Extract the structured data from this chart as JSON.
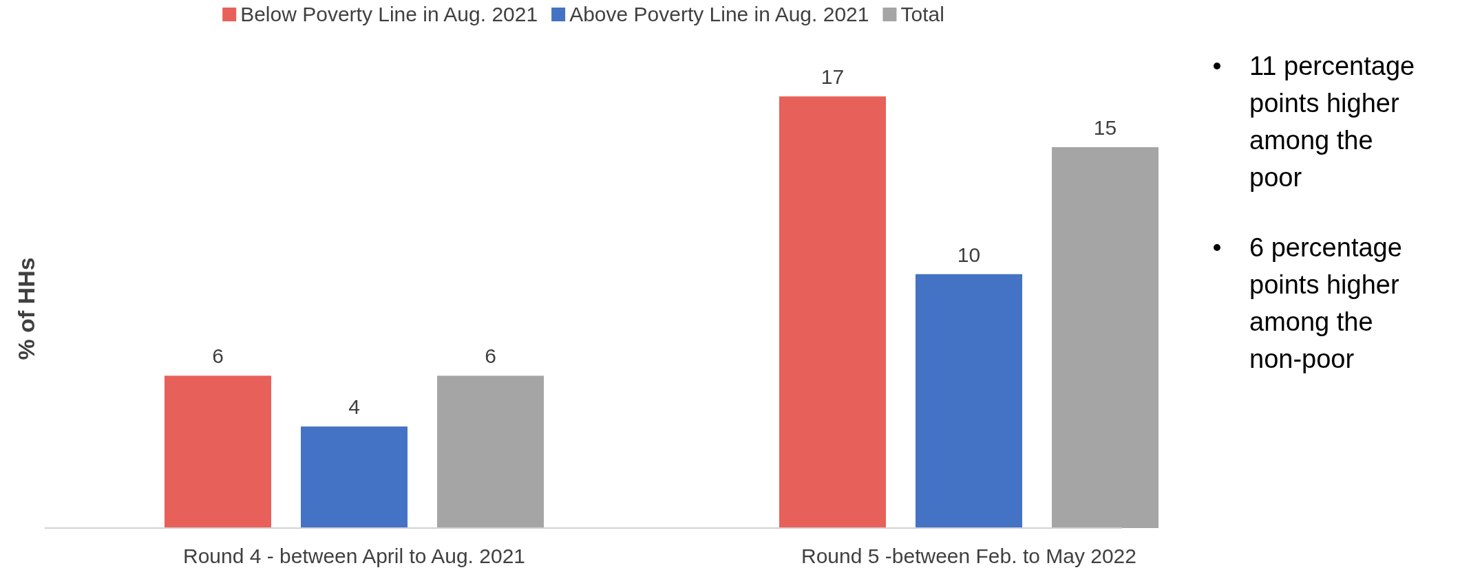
{
  "chart_data": {
    "type": "bar",
    "ylabel": "% of HHs",
    "categories": [
      "Round 4 - between April to Aug. 2021",
      "Round 5 -between Feb. to May 2022"
    ],
    "series": [
      {
        "name": "Below Poverty Line in Aug. 2021",
        "color": "#e8605a",
        "values": [
          6,
          17
        ]
      },
      {
        "name": "Above Poverty Line in Aug. 2021",
        "color": "#4472c4",
        "values": [
          4,
          10
        ]
      },
      {
        "name": "Total",
        "color": "#a5a5a5",
        "values": [
          6,
          15
        ]
      }
    ],
    "data_labels": true,
    "legend": "top",
    "grid": false,
    "annotations": [
      "11 percentage points higher among the poor",
      "6 percentage points higher among the non-poor"
    ]
  }
}
